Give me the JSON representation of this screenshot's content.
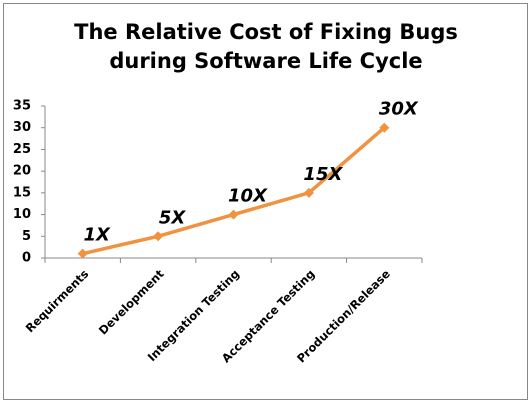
{
  "chart_data": {
    "type": "line",
    "title": [
      "The Relative Cost of Fixing Bugs",
      "during Software Life Cycle"
    ],
    "categories": [
      "Requirments",
      "Development",
      "Integration Testing",
      "Acceptance Testing",
      "Production/Release"
    ],
    "values": [
      1,
      5,
      10,
      15,
      30
    ],
    "value_labels": [
      "1X",
      "5X",
      "10X",
      "15X",
      "30X"
    ],
    "color": "#f0923f",
    "ylim": [
      0,
      35
    ],
    "yticks": [
      0,
      5,
      10,
      15,
      20,
      25,
      30,
      35
    ],
    "grid": false
  }
}
